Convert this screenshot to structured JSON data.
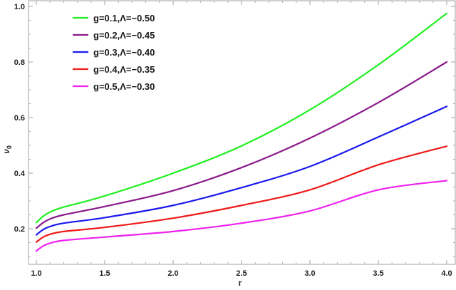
{
  "chart_data": {
    "type": "line",
    "title": "",
    "xlabel": "r",
    "ylabel": "ν₀",
    "xlim": [
      0.95,
      4.06
    ],
    "ylim": [
      0.073,
      1.02
    ],
    "x_ticks": [
      "1.0",
      "1.5",
      "2.0",
      "2.5",
      "3.0",
      "3.5",
      "4.0"
    ],
    "x_tick_values": [
      1.0,
      1.5,
      2.0,
      2.5,
      3.0,
      3.5,
      4.0
    ],
    "y_ticks": [
      "0.2",
      "0.4",
      "0.6",
      "0.8",
      "1.0"
    ],
    "y_tick_values": [
      0.2,
      0.4,
      0.6,
      0.8,
      1.0
    ],
    "grid": false,
    "legend_position": "upper-left-inside",
    "x": [
      1.0,
      1.05,
      1.1,
      1.2,
      1.5,
      2.0,
      2.5,
      3.0,
      3.5,
      4.0
    ],
    "series": [
      {
        "name": "g=0.1,Λ=−0.50",
        "color": "#22ee22",
        "values": [
          0.222,
          0.245,
          0.26,
          0.278,
          0.318,
          0.4,
          0.498,
          0.628,
          0.79,
          0.975
        ]
      },
      {
        "name": "g=0.2,Λ=−0.45",
        "color": "#8b1a8b",
        "values": [
          0.202,
          0.222,
          0.235,
          0.25,
          0.28,
          0.337,
          0.42,
          0.526,
          0.654,
          0.8
        ]
      },
      {
        "name": "g=0.3,Λ=−0.40",
        "color": "#1a1aee",
        "values": [
          0.178,
          0.197,
          0.208,
          0.22,
          0.24,
          0.284,
          0.348,
          0.424,
          0.53,
          0.64
        ]
      },
      {
        "name": "g=0.4,Λ=−0.35",
        "color": "#ee1a1a",
        "values": [
          0.152,
          0.17,
          0.18,
          0.19,
          0.205,
          0.238,
          0.284,
          0.34,
          0.43,
          0.497
        ]
      },
      {
        "name": "g=0.5,Λ=−0.30",
        "color": "#ee22ee",
        "values": [
          0.12,
          0.138,
          0.148,
          0.158,
          0.17,
          0.19,
          0.22,
          0.264,
          0.34,
          0.373
        ]
      }
    ]
  }
}
